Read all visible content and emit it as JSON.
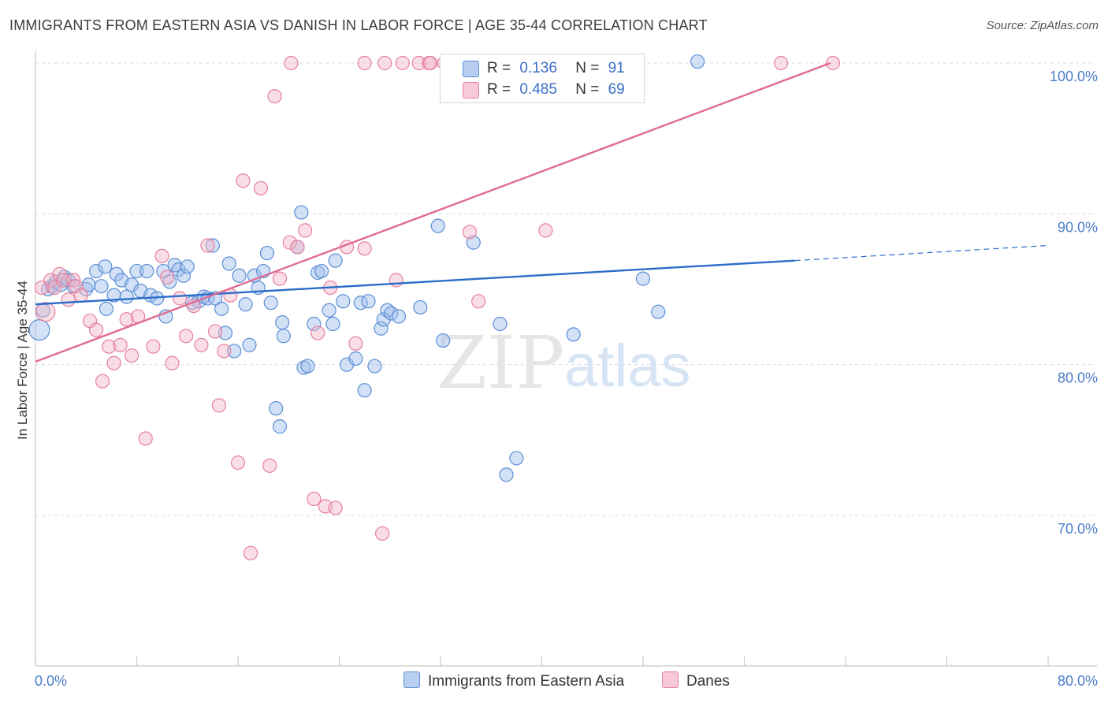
{
  "title": "IMMIGRANTS FROM EASTERN ASIA VS DANISH IN LABOR FORCE | AGE 35-44 CORRELATION CHART",
  "source": "Source: ZipAtlas.com",
  "watermark": {
    "zip": "ZIP",
    "atlas": "atlas"
  },
  "legend": {
    "r_label": "R =",
    "n_label": "N =",
    "series": [
      {
        "r": "0.136",
        "n": "91"
      },
      {
        "r": "0.485",
        "n": "69"
      }
    ]
  },
  "colors": {
    "blue_fill": "#9dbcea",
    "blue_stroke": "#5b8fd6",
    "blue_line": "#2a6cc9",
    "pink_fill": "#f4b6c8",
    "pink_stroke": "#e57fa1",
    "pink_line": "#e06a93",
    "tick_text": "#4a7cc9",
    "grid": "#dcdcdc"
  },
  "chart_data": {
    "type": "scatter",
    "title": "IMMIGRANTS FROM EASTERN ASIA VS DANISH IN LABOR FORCE | AGE 35-44 CORRELATION CHART",
    "xlabel": "",
    "ylabel": "In Labor Force | Age 35-44",
    "xlim": [
      0,
      80
    ],
    "ylim": [
      61.5,
      101.5
    ],
    "x_tick_labels": [
      "0.0%",
      "80.0%"
    ],
    "y_ticks": [
      70,
      80,
      90,
      100
    ],
    "y_tick_labels": [
      "70.0%",
      "80.0%",
      "90.0%",
      "100.0%"
    ],
    "grid": "horizontal dashed",
    "legend_position": "top-center",
    "series": [
      {
        "name": "Immigrants from Eastern Asia",
        "r": 0.136,
        "n": 91,
        "trend": {
          "x": [
            0,
            60
          ],
          "y": [
            84.0,
            86.9
          ],
          "dashed_to_x": 80,
          "dashed_to_y": 87.9
        },
        "points": [
          [
            0.3,
            82.3
          ],
          [
            0.6,
            83.6
          ],
          [
            1.0,
            85.0
          ],
          [
            1.3,
            85.2
          ],
          [
            1.6,
            85.5
          ],
          [
            2.0,
            85.3
          ],
          [
            2.3,
            85.8
          ],
          [
            2.6,
            85.6
          ],
          [
            3.0,
            85.2
          ],
          [
            4.0,
            85.0
          ],
          [
            4.2,
            85.3
          ],
          [
            4.8,
            86.2
          ],
          [
            5.2,
            85.2
          ],
          [
            5.5,
            86.5
          ],
          [
            5.6,
            83.7
          ],
          [
            6.2,
            84.6
          ],
          [
            6.4,
            86.0
          ],
          [
            6.8,
            85.6
          ],
          [
            7.2,
            84.5
          ],
          [
            7.6,
            85.3
          ],
          [
            8.0,
            86.2
          ],
          [
            8.3,
            84.9
          ],
          [
            8.8,
            86.2
          ],
          [
            9.1,
            84.6
          ],
          [
            9.6,
            84.4
          ],
          [
            10.1,
            86.2
          ],
          [
            10.3,
            83.2
          ],
          [
            10.6,
            85.5
          ],
          [
            11.0,
            86.6
          ],
          [
            11.3,
            86.3
          ],
          [
            11.7,
            85.9
          ],
          [
            12.0,
            86.5
          ],
          [
            12.4,
            84.1
          ],
          [
            12.9,
            84.2
          ],
          [
            13.3,
            84.5
          ],
          [
            13.6,
            84.4
          ],
          [
            14.0,
            87.9
          ],
          [
            14.2,
            84.4
          ],
          [
            14.7,
            83.7
          ],
          [
            15.0,
            82.1
          ],
          [
            15.3,
            86.7
          ],
          [
            15.7,
            80.9
          ],
          [
            16.1,
            85.9
          ],
          [
            16.6,
            84.0
          ],
          [
            16.9,
            81.3
          ],
          [
            17.3,
            85.9
          ],
          [
            17.6,
            85.1
          ],
          [
            18.0,
            86.2
          ],
          [
            18.3,
            87.4
          ],
          [
            18.6,
            84.1
          ],
          [
            19.0,
            77.1
          ],
          [
            19.3,
            75.9
          ],
          [
            19.5,
            82.8
          ],
          [
            19.6,
            81.9
          ],
          [
            20.7,
            87.8
          ],
          [
            21.0,
            90.1
          ],
          [
            21.2,
            79.8
          ],
          [
            21.5,
            79.9
          ],
          [
            22.0,
            82.7
          ],
          [
            22.3,
            86.1
          ],
          [
            22.6,
            86.2
          ],
          [
            23.2,
            83.6
          ],
          [
            23.5,
            82.7
          ],
          [
            23.7,
            86.9
          ],
          [
            24.3,
            84.2
          ],
          [
            24.6,
            80.0
          ],
          [
            25.3,
            80.4
          ],
          [
            25.7,
            84.1
          ],
          [
            26.0,
            78.3
          ],
          [
            26.3,
            84.2
          ],
          [
            26.8,
            79.9
          ],
          [
            27.3,
            82.4
          ],
          [
            27.5,
            83.0
          ],
          [
            27.8,
            83.6
          ],
          [
            28.1,
            83.4
          ],
          [
            28.7,
            83.2
          ],
          [
            30.4,
            83.8
          ],
          [
            31.8,
            89.2
          ],
          [
            32.2,
            81.6
          ],
          [
            33.0,
            99.9
          ],
          [
            34.6,
            88.1
          ],
          [
            34.8,
            99.9
          ],
          [
            36.7,
            82.7
          ],
          [
            37.2,
            72.7
          ],
          [
            38.0,
            73.8
          ],
          [
            39.5,
            100.1
          ],
          [
            42.5,
            82.0
          ],
          [
            48.0,
            85.7
          ],
          [
            49.2,
            83.5
          ],
          [
            52.3,
            100.1
          ]
        ]
      },
      {
        "name": "Danes",
        "r": 0.485,
        "n": 69,
        "trend": {
          "x": [
            0,
            62.8
          ],
          "y": [
            80.2,
            100.0
          ]
        },
        "points": [
          [
            0.5,
            85.1
          ],
          [
            0.8,
            83.5
          ],
          [
            1.2,
            85.6
          ],
          [
            1.5,
            85.1
          ],
          [
            1.9,
            86.0
          ],
          [
            2.2,
            85.6
          ],
          [
            2.6,
            84.3
          ],
          [
            3.0,
            85.6
          ],
          [
            3.2,
            85.2
          ],
          [
            3.6,
            84.6
          ],
          [
            4.3,
            82.9
          ],
          [
            4.8,
            82.3
          ],
          [
            5.3,
            78.9
          ],
          [
            5.8,
            81.2
          ],
          [
            6.2,
            80.1
          ],
          [
            6.7,
            81.3
          ],
          [
            7.2,
            83.0
          ],
          [
            7.6,
            80.6
          ],
          [
            8.1,
            83.2
          ],
          [
            8.7,
            75.1
          ],
          [
            9.3,
            81.2
          ],
          [
            10.0,
            87.2
          ],
          [
            10.4,
            85.8
          ],
          [
            10.8,
            80.1
          ],
          [
            11.4,
            84.4
          ],
          [
            11.9,
            81.9
          ],
          [
            12.5,
            83.9
          ],
          [
            13.1,
            81.3
          ],
          [
            13.6,
            87.9
          ],
          [
            14.2,
            82.2
          ],
          [
            14.5,
            77.3
          ],
          [
            14.9,
            80.9
          ],
          [
            15.4,
            84.6
          ],
          [
            16.0,
            73.5
          ],
          [
            16.4,
            92.2
          ],
          [
            17.0,
            67.5
          ],
          [
            17.8,
            91.7
          ],
          [
            18.5,
            73.3
          ],
          [
            18.9,
            97.8
          ],
          [
            19.3,
            85.7
          ],
          [
            20.1,
            88.1
          ],
          [
            20.7,
            87.8
          ],
          [
            21.3,
            88.9
          ],
          [
            22.0,
            71.1
          ],
          [
            22.3,
            82.1
          ],
          [
            22.9,
            70.6
          ],
          [
            23.3,
            85.1
          ],
          [
            23.7,
            70.5
          ],
          [
            24.6,
            87.8
          ],
          [
            25.3,
            81.4
          ],
          [
            26.0,
            87.7
          ],
          [
            27.4,
            68.8
          ],
          [
            28.5,
            85.6
          ],
          [
            29.0,
            100.0
          ],
          [
            30.3,
            100.0
          ],
          [
            31.1,
            100.0
          ],
          [
            32.3,
            100.0
          ],
          [
            33.0,
            100.0
          ],
          [
            34.3,
            88.8
          ],
          [
            35.0,
            84.2
          ],
          [
            38.1,
            100.0
          ],
          [
            40.3,
            88.9
          ],
          [
            47.0,
            100.0
          ],
          [
            58.9,
            100.0
          ],
          [
            63.0,
            100.0
          ],
          [
            20.2,
            100.0
          ],
          [
            26.0,
            100.0
          ],
          [
            27.6,
            100.0
          ],
          [
            31.2,
            100.0
          ]
        ]
      }
    ]
  }
}
